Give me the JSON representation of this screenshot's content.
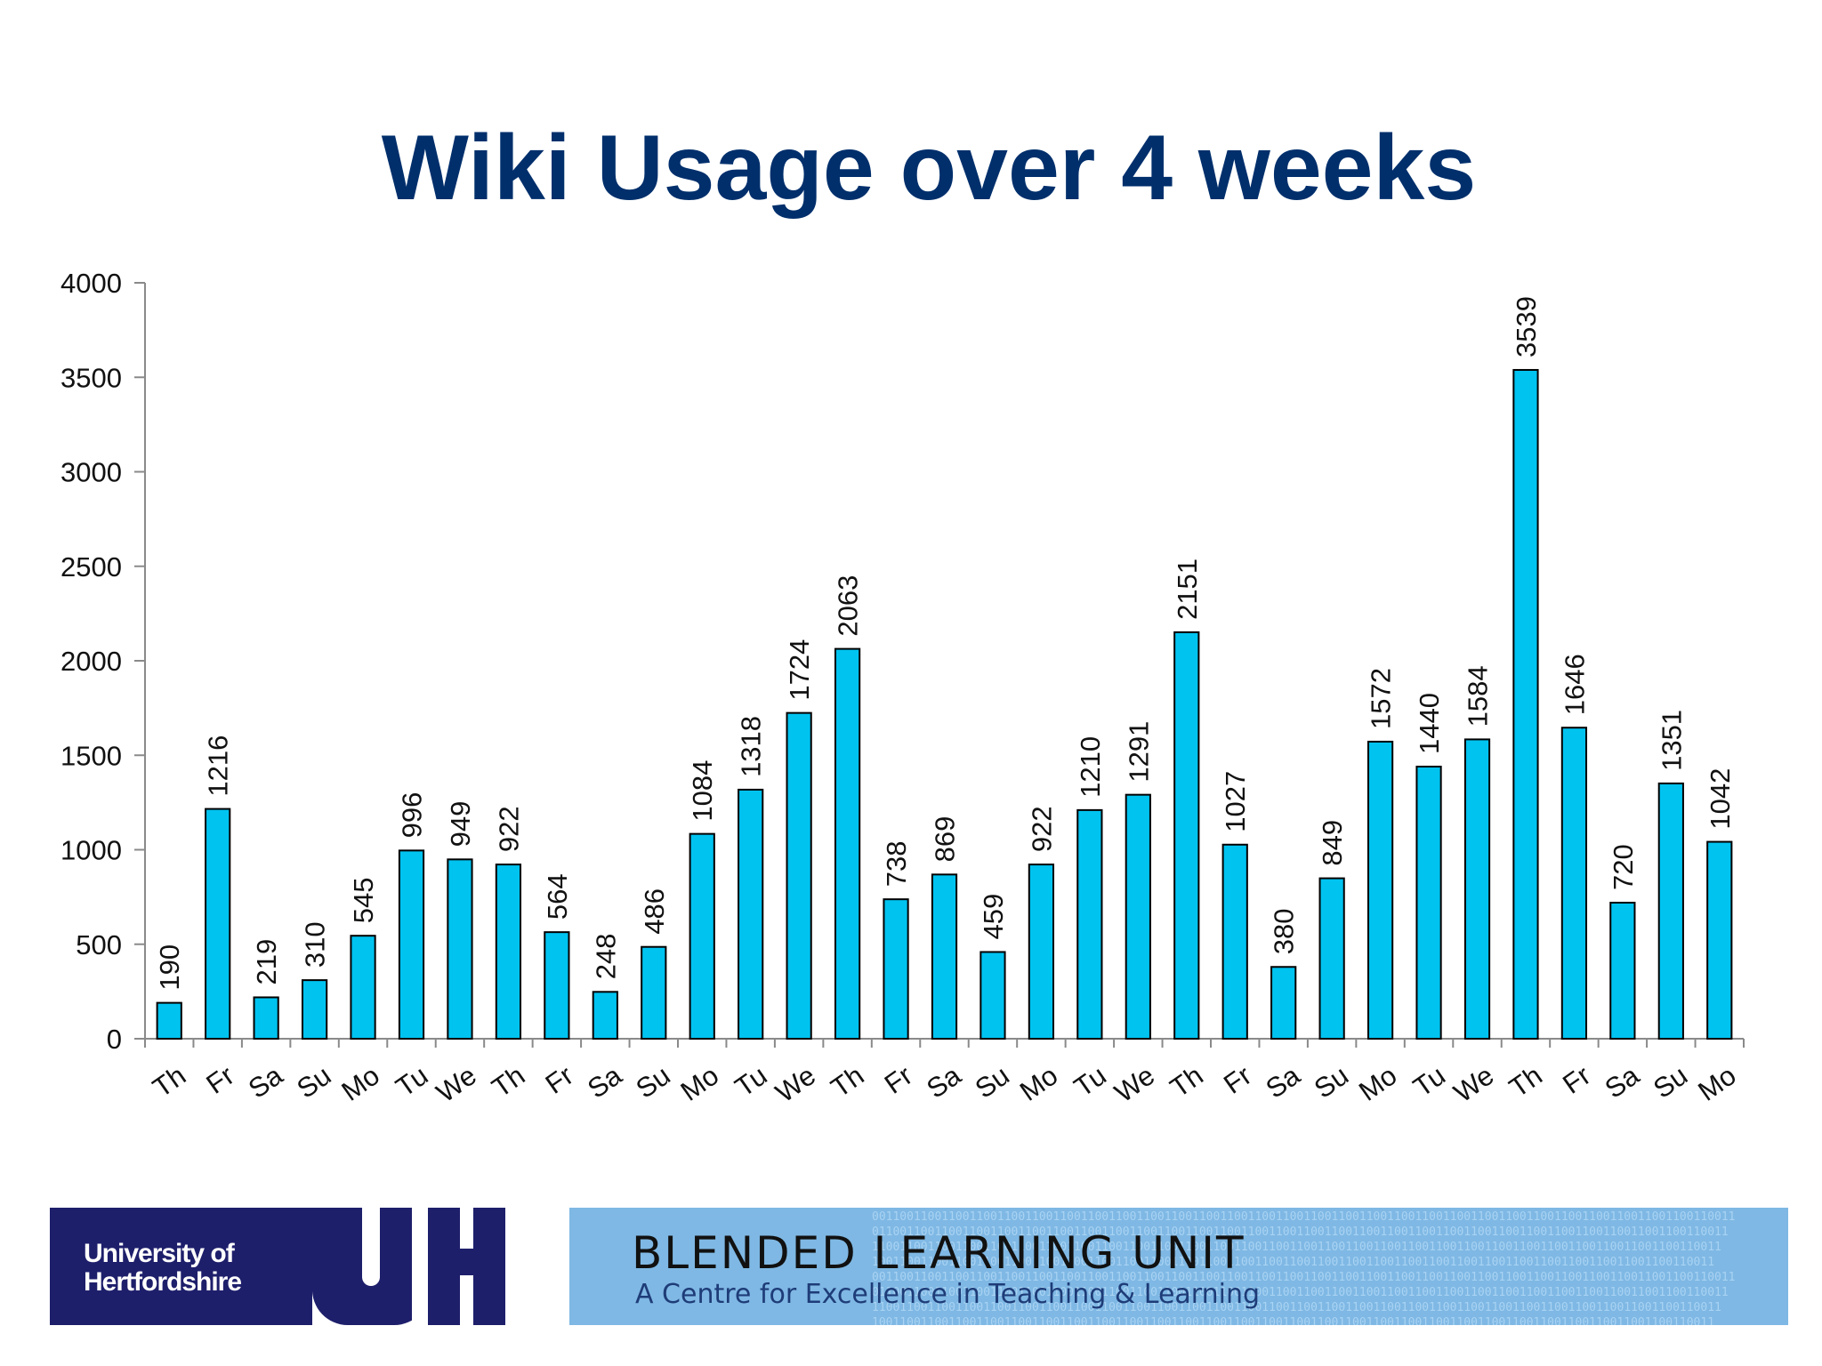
{
  "chart_data": {
    "type": "bar",
    "title": "Wiki Usage over 4 weeks",
    "xlabel": "",
    "ylabel": "",
    "ylim": [
      0,
      4000
    ],
    "yticks": [
      0,
      500,
      1000,
      1500,
      2000,
      2500,
      3000,
      3500,
      4000
    ],
    "categories": [
      "Th",
      "Fr",
      "Sa",
      "Su",
      "Mo",
      "Tu",
      "We",
      "Th",
      "Fr",
      "Sa",
      "Su",
      "Mo",
      "Tu",
      "We",
      "Th",
      "Fr",
      "Sa",
      "Su",
      "Mo",
      "Tu",
      "We",
      "Th",
      "Fr",
      "Sa",
      "Su",
      "Mo",
      "Tu",
      "We",
      "Th",
      "Fr",
      "Sa",
      "Su",
      "Mo"
    ],
    "values": [
      190,
      1216,
      219,
      310,
      545,
      996,
      949,
      922,
      564,
      248,
      486,
      1084,
      1318,
      1724,
      2063,
      738,
      869,
      459,
      922,
      1210,
      1291,
      2151,
      1027,
      380,
      849,
      1572,
      1440,
      1584,
      3539,
      1646,
      720,
      1351,
      1042
    ],
    "grid": false,
    "legend": "none",
    "bar_color": "#00c3f0"
  },
  "footer": {
    "university_line1": "University of",
    "university_line2": "Hertfordshire",
    "university_mark": "UH",
    "unit_title": "BLENDED LEARNING UNIT",
    "unit_subtitle": "A Centre for Excellence in Teaching & Learning"
  },
  "colors": {
    "title": "#002f6c",
    "uh_navy": "#1e1f6b",
    "blu_blue": "#7fb8e4"
  }
}
